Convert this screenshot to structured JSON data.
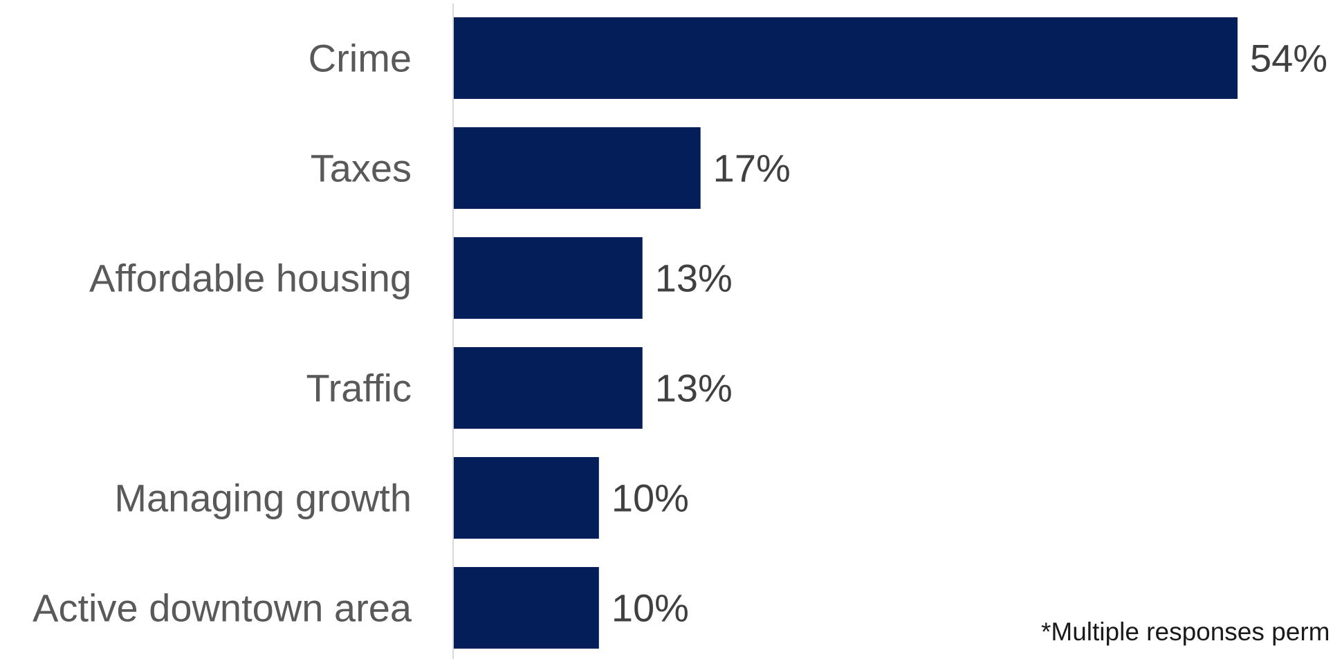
{
  "chart_data": {
    "type": "bar",
    "orientation": "horizontal",
    "categories": [
      "Crime",
      "Taxes",
      "Affordable housing",
      "Traffic",
      "Managing growth",
      "Active downtown area"
    ],
    "values": [
      54,
      17,
      13,
      13,
      10,
      10
    ],
    "data_labels": [
      "54%",
      "17%",
      "13%",
      "13%",
      "10%",
      "10%"
    ],
    "value_unit": "%",
    "title": "",
    "xlabel": "",
    "ylabel": "",
    "grid": false,
    "legend": "none",
    "bar_color": "#041e5a"
  },
  "footnote": "*Multiple responses perm"
}
